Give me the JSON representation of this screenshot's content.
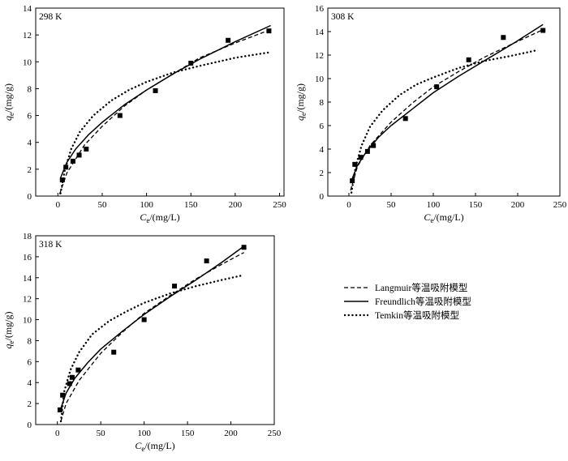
{
  "legend": {
    "items": [
      {
        "label": "Langmuir等温吸附模型",
        "style": "dashed"
      },
      {
        "label": "Freundlich等温吸附模型",
        "style": "solid"
      },
      {
        "label": "Temkin等温吸附模型",
        "style": "dotted"
      }
    ]
  },
  "chart_data": [
    {
      "type": "scatter",
      "panel_label": "298 K",
      "xlabel_main": "C",
      "xlabel_sub": "e",
      "xlabel_unit": "/(mg/L)",
      "ylabel_main": "q",
      "ylabel_sub": "e",
      "ylabel_unit": "/(mg/g)",
      "xlim": [
        -25,
        255
      ],
      "ylim": [
        0,
        14
      ],
      "xticks": [
        0,
        50,
        100,
        150,
        200,
        250
      ],
      "yticks": [
        0,
        2,
        4,
        6,
        8,
        10,
        12,
        14
      ],
      "points": {
        "x": [
          5,
          9,
          17,
          24,
          32,
          70,
          110,
          150,
          192,
          238
        ],
        "y": [
          1.2,
          2.15,
          2.6,
          3.05,
          3.5,
          6.0,
          7.85,
          9.9,
          11.6,
          12.3
        ]
      },
      "series": [
        {
          "name": "Langmuir",
          "style": "dashed",
          "x": [
            2,
            10,
            30,
            50,
            75,
            100,
            130,
            160,
            200,
            240
          ],
          "y": [
            0.15,
            1.7,
            3.8,
            5.2,
            6.7,
            7.9,
            9.1,
            10.3,
            11.4,
            12.4
          ]
        },
        {
          "name": "Freundlich",
          "style": "solid",
          "x": [
            3,
            10,
            20,
            35,
            50,
            75,
            100,
            130,
            160,
            200,
            240
          ],
          "y": [
            1.35,
            2.5,
            3.5,
            4.6,
            5.5,
            6.8,
            7.9,
            9.1,
            10.2,
            11.5,
            12.7
          ]
        },
        {
          "name": "Temkin",
          "style": "dotted",
          "x": [
            3,
            8,
            15,
            25,
            40,
            60,
            80,
            100,
            130,
            160,
            200,
            238
          ],
          "y": [
            0.2,
            2.0,
            3.5,
            4.8,
            6.0,
            7.1,
            7.9,
            8.5,
            9.2,
            9.7,
            10.3,
            10.7
          ]
        }
      ]
    },
    {
      "type": "scatter",
      "panel_label": "308 K",
      "xlabel_main": "C",
      "xlabel_sub": "e",
      "xlabel_unit": "/(mg/L)",
      "ylabel_main": "q",
      "ylabel_sub": "e",
      "ylabel_unit": "/(mg/g)",
      "xlim": [
        -25,
        250
      ],
      "ylim": [
        0,
        16
      ],
      "xticks": [
        0,
        50,
        100,
        150,
        200,
        250
      ],
      "yticks": [
        0,
        2,
        4,
        6,
        8,
        10,
        12,
        14,
        16
      ],
      "points": {
        "x": [
          4,
          7,
          14,
          22,
          29,
          67,
          104,
          142,
          183,
          230
        ],
        "y": [
          1.3,
          2.7,
          3.3,
          3.8,
          4.3,
          6.6,
          9.3,
          11.6,
          13.5,
          14.1
        ]
      },
      "series": [
        {
          "name": "Langmuir",
          "style": "dashed",
          "x": [
            2,
            10,
            25,
            50,
            75,
            100,
            130,
            160,
            195,
            228
          ],
          "y": [
            0.5,
            2.5,
            4.3,
            6.3,
            7.9,
            9.3,
            10.6,
            11.8,
            13.0,
            14.1
          ]
        },
        {
          "name": "Freundlich",
          "style": "solid",
          "x": [
            3,
            10,
            20,
            35,
            50,
            75,
            100,
            130,
            160,
            195,
            230
          ],
          "y": [
            1.3,
            2.6,
            3.7,
            5.0,
            6.0,
            7.4,
            8.8,
            10.2,
            11.5,
            13.0,
            14.6
          ]
        },
        {
          "name": "Temkin",
          "style": "dotted",
          "x": [
            3,
            8,
            15,
            25,
            40,
            60,
            80,
            100,
            130,
            160,
            190,
            222
          ],
          "y": [
            0.3,
            2.5,
            4.3,
            5.9,
            7.3,
            8.6,
            9.5,
            10.1,
            10.9,
            11.5,
            11.9,
            12.4
          ]
        }
      ]
    },
    {
      "type": "scatter",
      "panel_label": "318 K",
      "xlabel_main": "C",
      "xlabel_sub": "e",
      "xlabel_unit": "/(mg/L)",
      "ylabel_main": "q",
      "ylabel_sub": "e",
      "ylabel_unit": "/(mg/g)",
      "xlim": [
        -25,
        250
      ],
      "ylim": [
        0,
        18
      ],
      "xticks": [
        0,
        50,
        100,
        150,
        200,
        250
      ],
      "yticks": [
        0,
        2,
        4,
        6,
        8,
        10,
        12,
        14,
        16,
        18
      ],
      "points": {
        "x": [
          3,
          6,
          14,
          17,
          24,
          65,
          100,
          135,
          172,
          215
        ],
        "y": [
          1.4,
          2.8,
          3.9,
          4.5,
          5.2,
          6.9,
          10.0,
          13.2,
          15.6,
          16.9
        ]
      },
      "series": [
        {
          "name": "Langmuir",
          "style": "dashed",
          "x": [
            4,
            10,
            25,
            50,
            75,
            100,
            130,
            160,
            190,
            215
          ],
          "y": [
            0.3,
            2.0,
            4.2,
            6.8,
            8.8,
            10.6,
            12.3,
            13.9,
            15.3,
            16.4
          ]
        },
        {
          "name": "Freundlich",
          "style": "solid",
          "x": [
            3,
            10,
            20,
            35,
            50,
            75,
            100,
            130,
            160,
            190,
            215
          ],
          "y": [
            1.3,
            3.0,
            4.4,
            5.9,
            7.2,
            8.9,
            10.5,
            12.2,
            13.8,
            15.5,
            17.0
          ]
        },
        {
          "name": "Temkin",
          "style": "dotted",
          "x": [
            4,
            8,
            15,
            25,
            40,
            60,
            80,
            100,
            130,
            160,
            190,
            212
          ],
          "y": [
            0.3,
            3.2,
            5.2,
            6.9,
            8.6,
            9.9,
            10.8,
            11.6,
            12.5,
            13.2,
            13.8,
            14.2
          ]
        }
      ]
    }
  ]
}
